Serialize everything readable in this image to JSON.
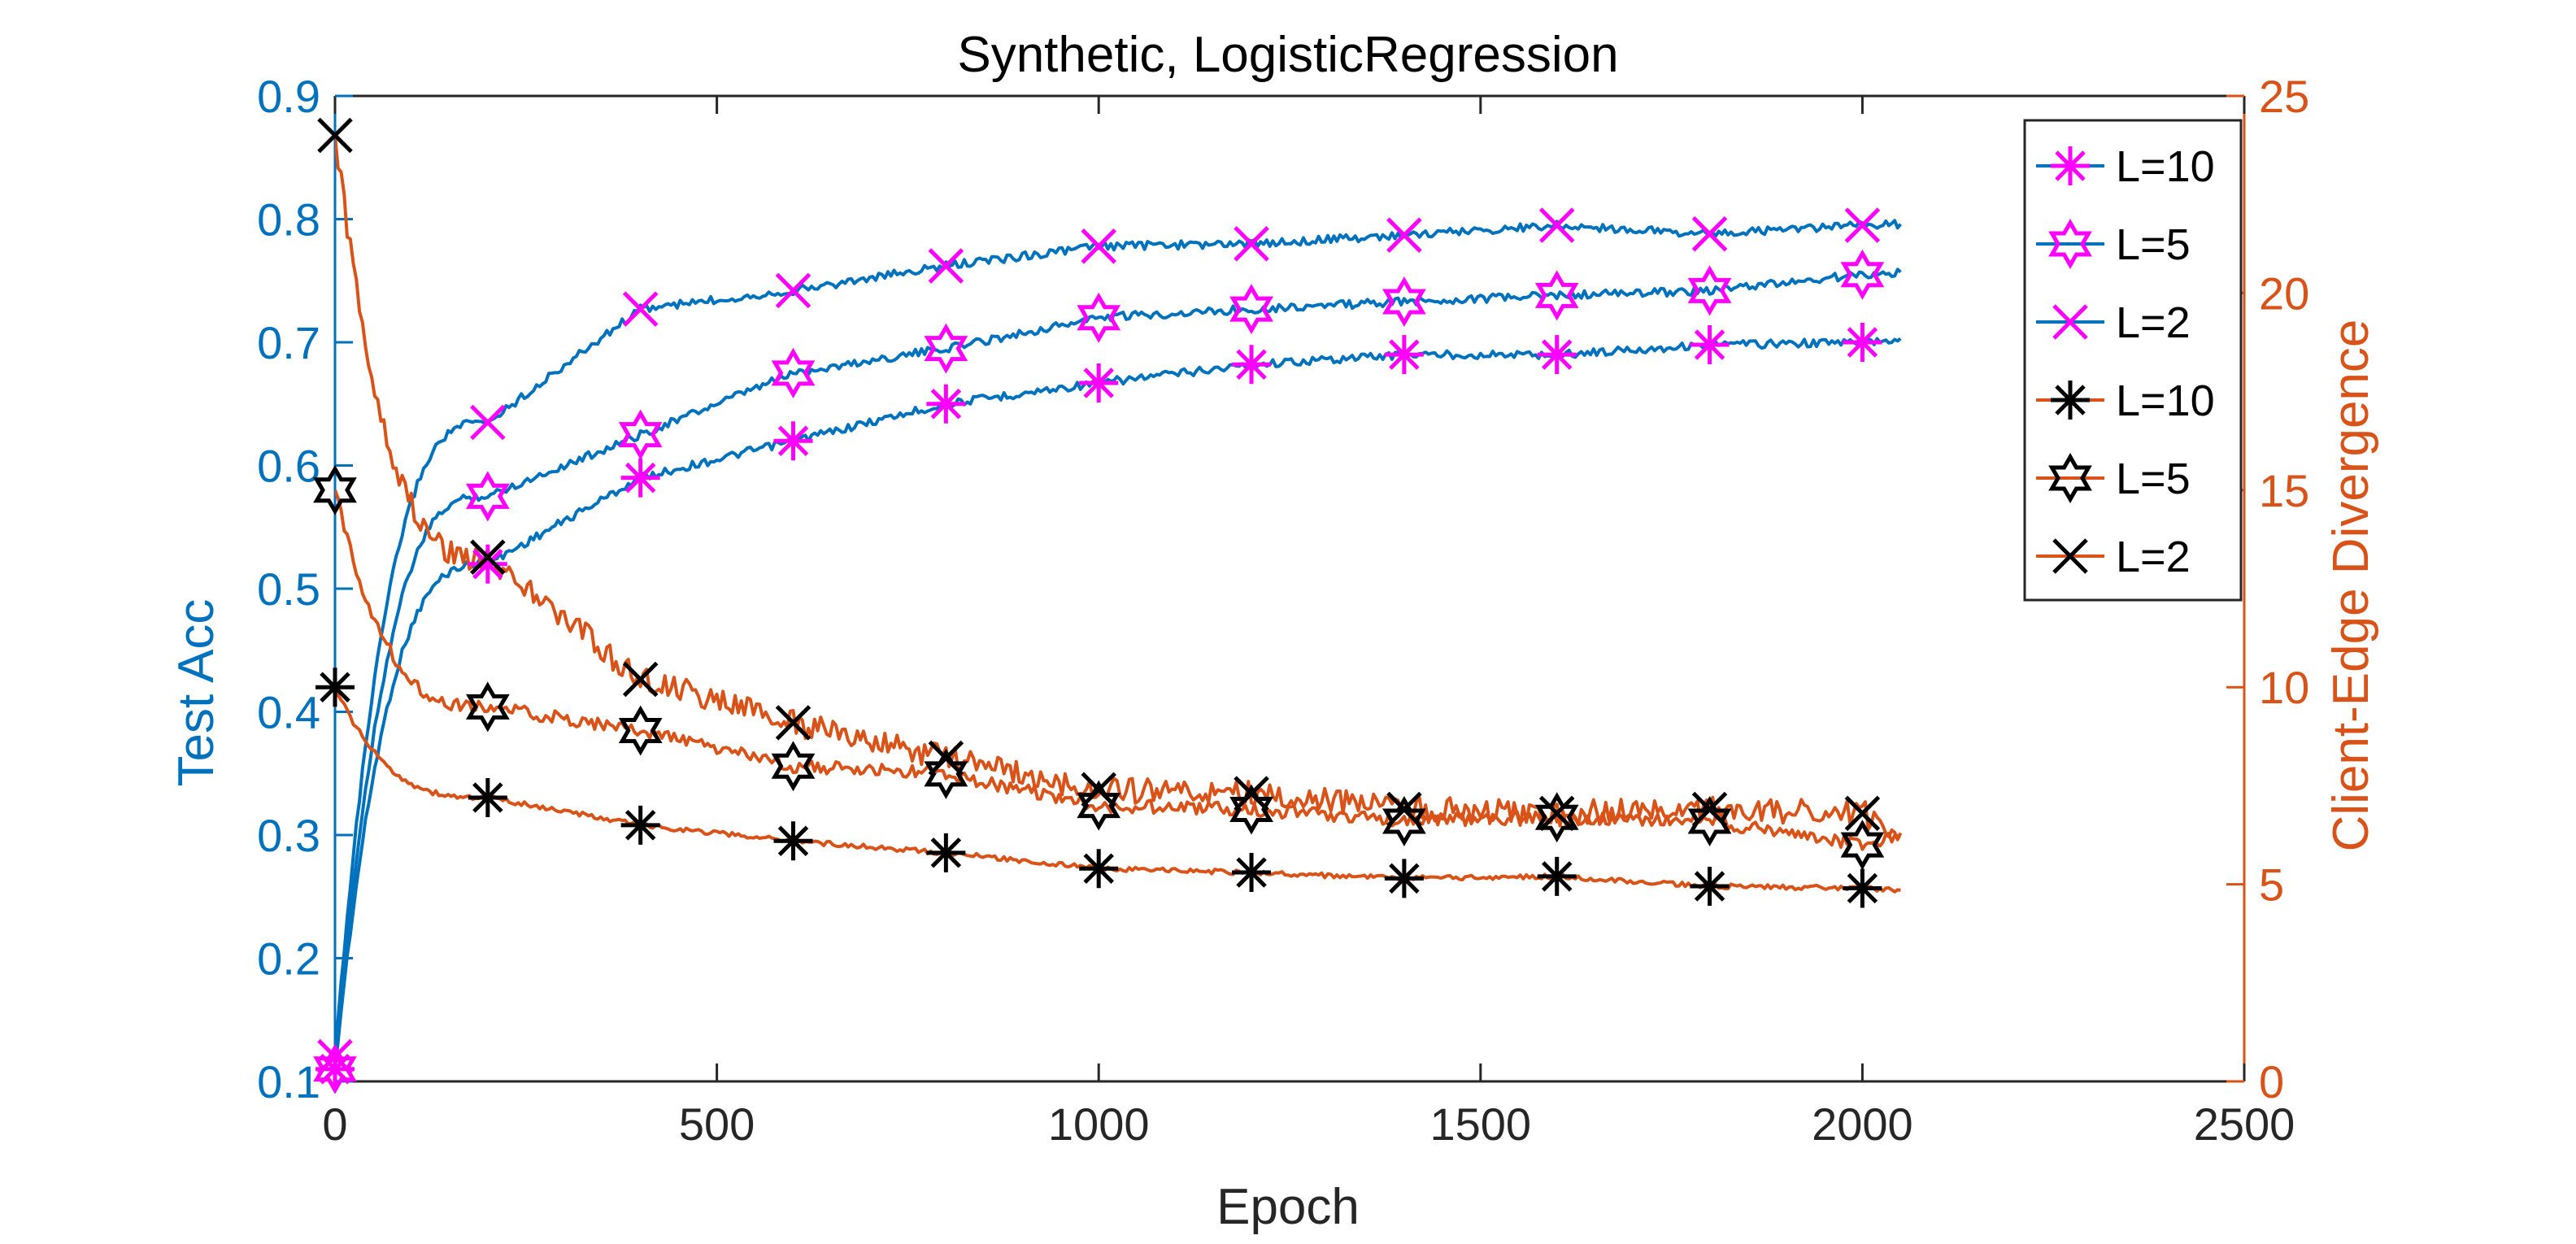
{
  "chart_data": {
    "type": "line",
    "title": "Synthetic, LogisticRegression",
    "xlabel": "Epoch",
    "ylabel_left": "Test Acc",
    "ylabel_right": "Client-Edge Divergence",
    "xlim": [
      0,
      2500
    ],
    "ylim_left": [
      0.1,
      0.9
    ],
    "ylim_right": [
      0,
      25
    ],
    "xticks": [
      "0",
      "500",
      "1000",
      "1500",
      "2000",
      "2500"
    ],
    "yticks_left": [
      "0.1",
      "0.2",
      "0.3",
      "0.4",
      "0.5",
      "0.6",
      "0.7",
      "0.8",
      "0.9"
    ],
    "yticks_right": [
      "0",
      "5",
      "10",
      "15",
      "20",
      "25"
    ],
    "grid": false,
    "legend_position": "top-right",
    "colors": {
      "left_axis": "#0072BD",
      "right_axis": "#D95319",
      "marker_left": "#FF00FF",
      "marker_right": "#000000"
    },
    "series": [
      {
        "name": "L=10",
        "axis": "left",
        "marker": "asterisk",
        "x": [
          0,
          200,
          400,
          600,
          800,
          1000,
          1200,
          1400,
          1600,
          1800,
          2000,
          2050
        ],
        "y": [
          0.11,
          0.52,
          0.59,
          0.62,
          0.65,
          0.667,
          0.682,
          0.69,
          0.69,
          0.698,
          0.7,
          0.703
        ]
      },
      {
        "name": "L=5",
        "axis": "left",
        "marker": "hexagram",
        "x": [
          0,
          200,
          400,
          600,
          800,
          1000,
          1200,
          1400,
          1600,
          1800,
          2000,
          2050
        ],
        "y": [
          0.11,
          0.575,
          0.625,
          0.675,
          0.695,
          0.72,
          0.727,
          0.733,
          0.738,
          0.742,
          0.755,
          0.757
        ]
      },
      {
        "name": "L=2",
        "axis": "left",
        "marker": "cross",
        "x": [
          0,
          200,
          400,
          600,
          800,
          1000,
          1200,
          1400,
          1600,
          1800,
          2000,
          2050
        ],
        "y": [
          0.12,
          0.635,
          0.727,
          0.742,
          0.762,
          0.778,
          0.78,
          0.787,
          0.795,
          0.788,
          0.795,
          0.796
        ]
      },
      {
        "name": "L=10",
        "axis": "right",
        "marker": "asterisk",
        "x": [
          0,
          200,
          400,
          600,
          800,
          1000,
          1200,
          1400,
          1600,
          1800,
          2000,
          2050
        ],
        "y": [
          10.0,
          7.2,
          6.5,
          6.1,
          5.8,
          5.4,
          5.3,
          5.15,
          5.2,
          4.95,
          4.9,
          4.85
        ]
      },
      {
        "name": "L=5",
        "axis": "right",
        "marker": "hexagram",
        "x": [
          0,
          200,
          400,
          600,
          800,
          1000,
          1200,
          1400,
          1600,
          1800,
          2000,
          2050
        ],
        "y": [
          15.0,
          9.5,
          8.9,
          8.0,
          7.8,
          7.0,
          6.9,
          6.6,
          6.7,
          6.6,
          6.0,
          6.2
        ]
      },
      {
        "name": "L=2",
        "axis": "right",
        "marker": "cross",
        "x": [
          0,
          200,
          400,
          600,
          800,
          1000,
          1200,
          1400,
          1600,
          1800,
          2000,
          2050
        ],
        "y": [
          24.0,
          13.3,
          10.2,
          9.1,
          8.2,
          7.4,
          7.3,
          6.9,
          6.8,
          6.9,
          6.8,
          6.3
        ]
      }
    ]
  }
}
